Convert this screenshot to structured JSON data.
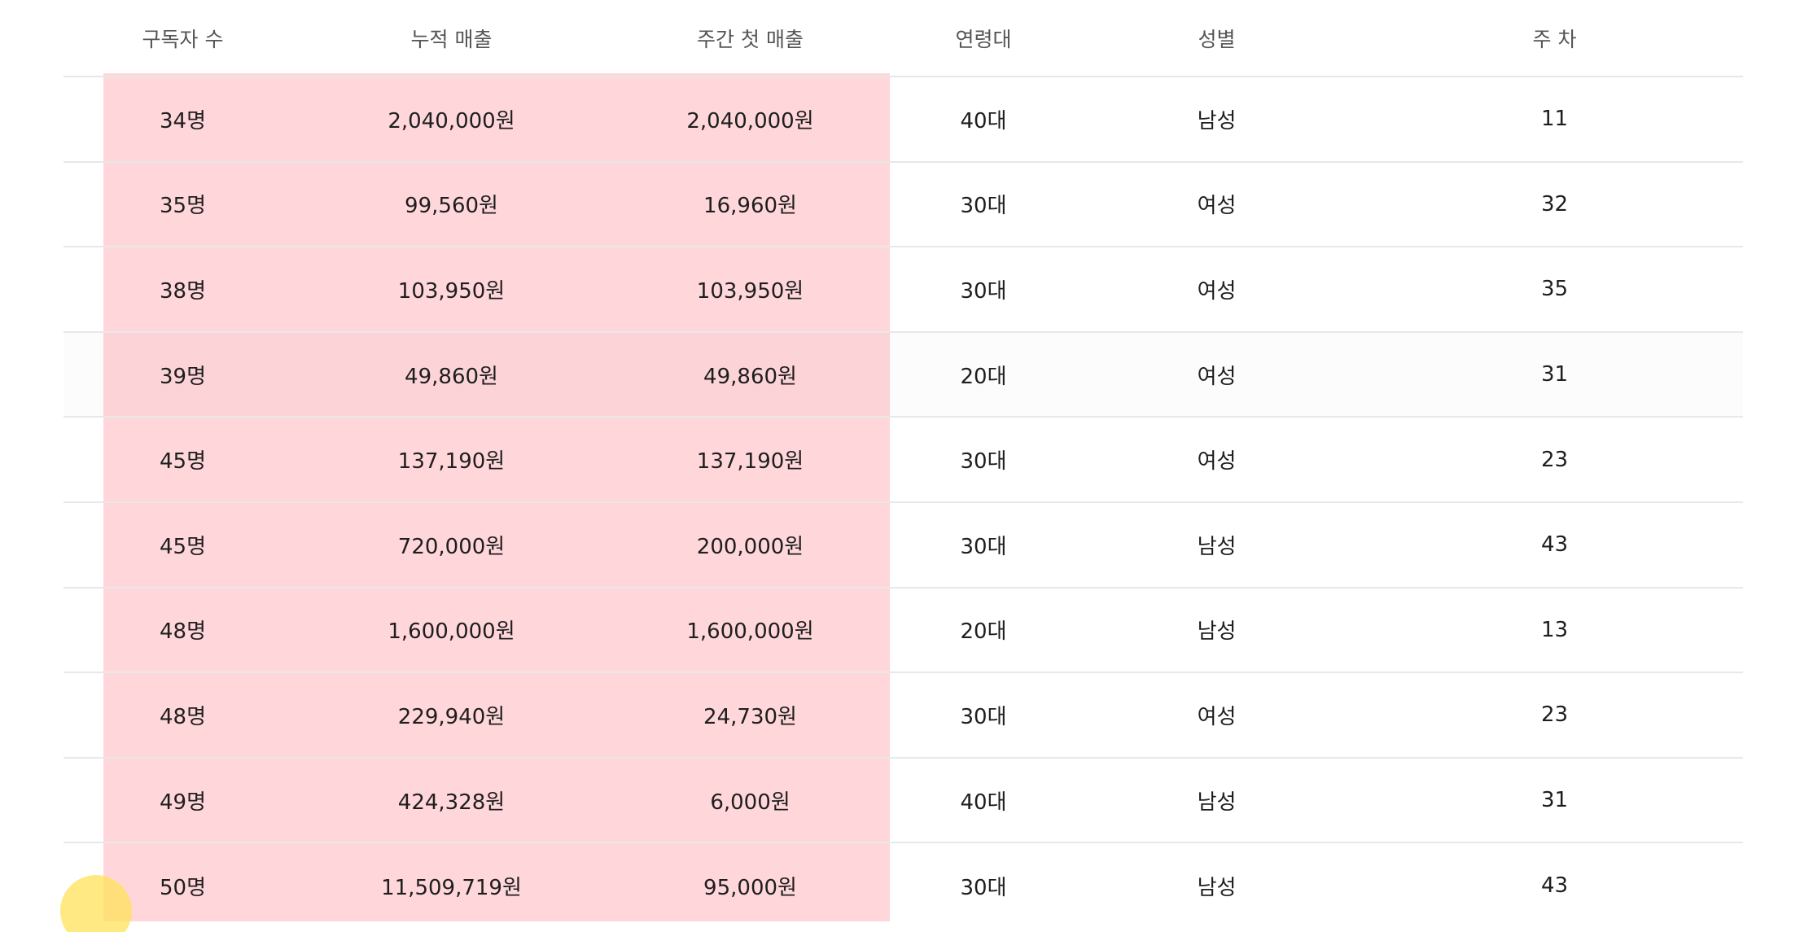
{
  "table": {
    "headers": [
      "구독자 수",
      "누적 매출",
      "주간 첫 매출",
      "연령대",
      "성별",
      "주 차"
    ],
    "rows": [
      [
        "34명",
        "2,040,000원",
        "2,040,000원",
        "40대",
        "남성",
        "11"
      ],
      [
        "35명",
        "99,560원",
        "16,960원",
        "30대",
        "여성",
        "32"
      ],
      [
        "38명",
        "103,950원",
        "103,950원",
        "30대",
        "여성",
        "35"
      ],
      [
        "39명",
        "49,860원",
        "49,860원",
        "20대",
        "여성",
        "31"
      ],
      [
        "45명",
        "137,190원",
        "137,190원",
        "30대",
        "여성",
        "23"
      ],
      [
        "45명",
        "720,000원",
        "200,000원",
        "30대",
        "남성",
        "43"
      ],
      [
        "48명",
        "1,600,000원",
        "1,600,000원",
        "20대",
        "남성",
        "13"
      ],
      [
        "48명",
        "229,940원",
        "24,730원",
        "30대",
        "여성",
        "23"
      ],
      [
        "49명",
        "424,328원",
        "6,000원",
        "40대",
        "남성",
        "31"
      ],
      [
        "50명",
        "11,509,719원",
        "95,000원",
        "30대",
        "남성",
        "43"
      ]
    ]
  },
  "colors": {
    "highlight": "#ffd6da",
    "cursor_dot": "#ffe15a",
    "divider": "#e8e8e8",
    "header_text": "#555555"
  },
  "icons": {
    "cursor": "mouse-pointer-icon"
  }
}
